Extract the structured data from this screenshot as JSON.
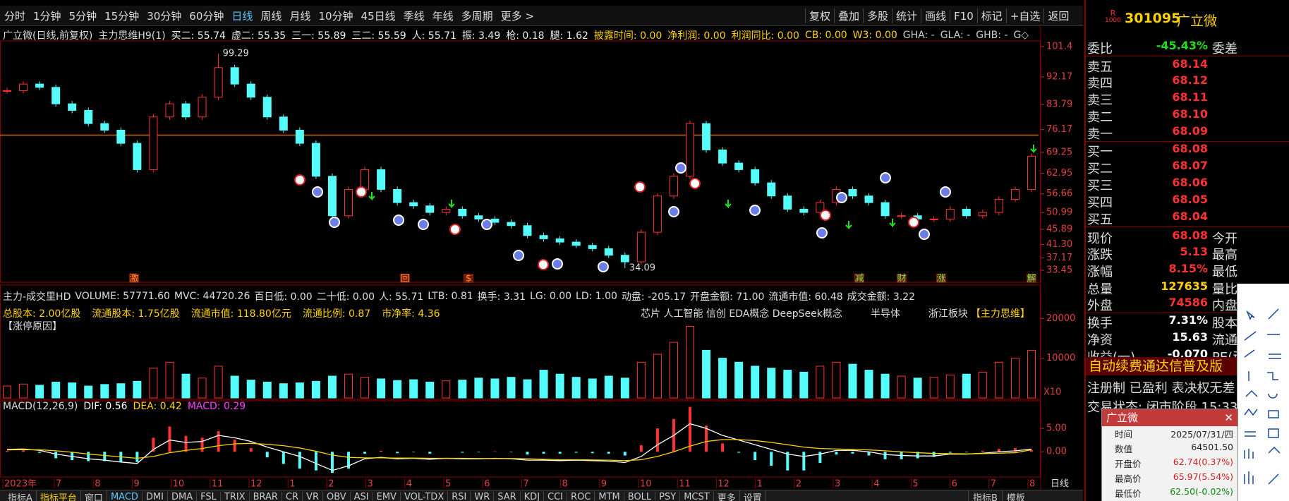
{
  "toolbar": {
    "periods": [
      "分时",
      "1分钟",
      "5分钟",
      "15分钟",
      "30分钟",
      "60分钟",
      "日线",
      "周线",
      "月线",
      "10分钟",
      "45日线",
      "季线",
      "年线",
      "多周期",
      "更多 >"
    ],
    "tools": [
      "复权",
      "叠加",
      "多股",
      "统计",
      "画线",
      "F10",
      "标记",
      "+自选",
      "返回"
    ]
  },
  "main_info": {
    "stock": "广立微(日线,前复权)",
    "indicator": "主力思维H9(1)",
    "white": [
      "买二: 55.74",
      "虚二: 55.35",
      "三一: 55.89",
      "三二: 55.59",
      "人: 55.71",
      "振: 3.49",
      "枪: 0.18",
      "腿: 1.62"
    ],
    "yellow": [
      "披露时间: 0.00",
      "净利润: 0.00",
      "利润同比: 0.00",
      "CB: 0.00",
      "W3: 0.00"
    ],
    "gray": [
      "GHA: -",
      "GLA: -",
      "GHB: -",
      "G◇"
    ]
  },
  "price_chart": {
    "ylim": [
      29.8,
      103.1
    ],
    "yticks": [
      101.4,
      92.17,
      83.79,
      76.17,
      69.25,
      62.95,
      56.66,
      50.99,
      45.89,
      {
        "value": 41.3,
        "label": "41.30"
      },
      37.17,
      33.45
    ],
    "closes": [
      88,
      90,
      89,
      84,
      82,
      78,
      76,
      72,
      64,
      80,
      84,
      80,
      86,
      95,
      90,
      86,
      80,
      76,
      72,
      62,
      50,
      58,
      64,
      58,
      54,
      53,
      51,
      52,
      50,
      49,
      48,
      47,
      44,
      43,
      42,
      41,
      40,
      38,
      36,
      45,
      56,
      62,
      78,
      70,
      66,
      64,
      60,
      56,
      52,
      51,
      54,
      58,
      56,
      54,
      50,
      50,
      49,
      49,
      52,
      50,
      51,
      55,
      58,
      68.08
    ],
    "high": 99.29,
    "low": 34.09,
    "resistance": 74.5,
    "events": [
      "激",
      "回",
      "$",
      "减",
      "财",
      "涨",
      "解"
    ]
  },
  "volume_panel": {
    "info": [
      "主力-成交里HD",
      "VOLUME: 57771.60",
      "MVC: 44720.26",
      "百日低: 0.00",
      "二十低: 0.00",
      "人: 55.71",
      "LTB: 0.81",
      "换手: 3.31",
      "LG: 0.00",
      "LD: 1.00",
      "动盘: -205.17",
      "开盘金额: 71.00",
      "流通市值: 60.48",
      "成交金额: 3.22"
    ],
    "fundamentals": [
      "总股本: 2.00亿股",
      "流通股本: 1.75亿股",
      "流通市值: 118.80亿元",
      "流通比例: 0.87",
      "市净率: 4.36"
    ],
    "concepts": [
      "芯片 人工智能 信创 EDA概念 DeepSeek概念",
      "半导体",
      "浙江板块"
    ],
    "system": "【主力思维】",
    "reason": "【涨停原因】",
    "ylim": [
      0,
      28400
    ],
    "yticks": [
      10000,
      20000
    ],
    "unit": "X10",
    "values": [
      3000,
      3500,
      3200,
      4000,
      3800,
      3000,
      3400,
      3600,
      4200,
      7500,
      9000,
      6000,
      5000,
      8000,
      5500,
      4500,
      4000,
      3600,
      3800,
      4200,
      5500,
      6000,
      5200,
      4800,
      4400,
      4600,
      4000,
      4300,
      4500,
      5000,
      4800,
      5200,
      4600,
      7000,
      6000,
      5200,
      4800,
      5500,
      5000,
      9000,
      11000,
      14000,
      18000,
      12000,
      10000,
      9000,
      8000,
      7500,
      7000,
      6500,
      8000,
      9000,
      8500,
      7000,
      6000,
      5500,
      5000,
      5200,
      5800,
      6000,
      6500,
      9000,
      10000,
      12000
    ]
  },
  "macd_panel": {
    "name": "MACD(12,26,9)",
    "dif_label": "DIF: 0.56",
    "dea_label": "DEA: 0.42",
    "macd_label": "MACD: 0.29",
    "ylim": [
      -5.4,
      10.6
    ],
    "yticks": [
      {
        "value": 0,
        "label": "0.00"
      },
      {
        "value": 5,
        "label": "5.00"
      }
    ],
    "dif": [
      0.5,
      0.6,
      0.3,
      -0.5,
      -1,
      -1.5,
      -1.8,
      -2.2,
      -2.5,
      0.5,
      2.5,
      2,
      2.2,
      3.5,
      3,
      2.2,
      1,
      0,
      -1,
      -2.5,
      -4,
      -3,
      -1.5,
      -1.2,
      -1.5,
      -1.4,
      -1.6,
      -1.4,
      -1.5,
      -1.5,
      -1.4,
      -1.5,
      -1.8,
      -1.8,
      -1.9,
      -1.8,
      -1.9,
      -2,
      -2.3,
      -1,
      1.5,
      3.5,
      6,
      5,
      3.5,
      2.5,
      1.5,
      0.5,
      -0.5,
      -1,
      -0.5,
      0.3,
      0.3,
      0,
      -0.6,
      -0.8,
      -0.9,
      -0.9,
      -0.5,
      -0.5,
      -0.3,
      0,
      0.2,
      0.56
    ],
    "dea": [
      0.4,
      0.45,
      0.42,
      0.2,
      -0.1,
      -0.5,
      -0.8,
      -1.1,
      -1.4,
      -1,
      -0.2,
      0.3,
      0.7,
      1.3,
      1.7,
      1.8,
      1.6,
      1.3,
      0.8,
      0.1,
      -0.7,
      -1.2,
      -1.3,
      -1.3,
      -1.35,
      -1.35,
      -1.4,
      -1.4,
      -1.4,
      -1.45,
      -1.45,
      -1.45,
      -1.5,
      -1.6,
      -1.7,
      -1.7,
      -1.75,
      -1.8,
      -1.9,
      -1.7,
      -1,
      0,
      1.2,
      2.2,
      2.6,
      2.6,
      2.4,
      2,
      1.5,
      1,
      0.7,
      0.6,
      0.5,
      0.4,
      0.2,
      0,
      -0.2,
      -0.35,
      -0.4,
      -0.45,
      -0.4,
      -0.3,
      -0.2,
      0.42
    ],
    "macd": [
      0.2,
      0.3,
      -0.24,
      -1.4,
      -1.8,
      -2,
      -2,
      -2.2,
      -2.2,
      3,
      5.4,
      3.4,
      3,
      4.4,
      2.6,
      0.8,
      -1.2,
      -2.6,
      -3.6,
      -4,
      -4.5,
      -3.6,
      -0.4,
      0.2,
      -0.3,
      -0.1,
      -0.4,
      0,
      -0.2,
      -0.1,
      0.1,
      -0.1,
      -0.6,
      -0.4,
      -0.4,
      -0.2,
      -0.3,
      -0.4,
      -0.8,
      1.4,
      5,
      7,
      9.6,
      5.6,
      1.8,
      -0.2,
      -1.8,
      -3,
      -4,
      -4,
      -2.4,
      -0.6,
      -0.4,
      -0.8,
      -1.6,
      -1.6,
      -1.4,
      -1.1,
      -0.2,
      -0.1,
      0.2,
      0.6,
      0.8,
      0.29
    ]
  },
  "date_axis": {
    "labels": [
      "2023年",
      "7",
      "8",
      "9",
      "10",
      "11",
      "12",
      "1",
      "2",
      "3",
      "4",
      "5",
      "6",
      "7",
      "8",
      "9",
      "10",
      "11",
      "12",
      "1",
      "2",
      "3",
      "4",
      "5",
      "6",
      "7",
      "8"
    ],
    "period": "日线"
  },
  "quote": {
    "code": "301095",
    "name": "广立微",
    "badge": "R",
    "badge_sub": "1000",
    "rows": [
      {
        "label": "委比",
        "value": "-45.43%",
        "right": "委差"
      },
      {
        "label": "卖五",
        "value": "68.14"
      },
      {
        "label": "卖四",
        "value": "68.12"
      },
      {
        "label": "卖三",
        "value": "68.11"
      },
      {
        "label": "卖二",
        "value": "68.10"
      },
      {
        "label": "卖一",
        "value": "68.09"
      },
      {
        "label": "买一",
        "value": "68.08"
      },
      {
        "label": "买二",
        "value": "68.07"
      },
      {
        "label": "买三",
        "value": "68.06"
      },
      {
        "label": "买四",
        "value": "68.05"
      },
      {
        "label": "买五",
        "value": "68.04"
      },
      {
        "label": "现价",
        "value": "68.08",
        "right": "今开"
      },
      {
        "label": "涨跌",
        "value": "5.13",
        "right": "最高"
      },
      {
        "label": "涨幅",
        "value": "8.15%",
        "right": "最低"
      },
      {
        "label": "总量",
        "value": "127635",
        "right": "量比"
      },
      {
        "label": "外盘",
        "value": "74586",
        "right": "内盘"
      },
      {
        "label": "换手",
        "value": "7.31%",
        "right": "股本"
      },
      {
        "label": "净资",
        "value": "15.63",
        "right": "流通"
      },
      {
        "label": "收益(一)",
        "value": "-0.070",
        "right": "PE(动"
      }
    ],
    "promo": "自动续费通达信普及版",
    "tags": "注册制 已盈利 表决权无差",
    "status": "交易状态: 闭市阶段 15:33"
  },
  "popup": {
    "title": "广立微",
    "rows": [
      {
        "label": "时间",
        "value": "2025/07/31/四"
      },
      {
        "label": "数值",
        "value": "64501.50"
      },
      {
        "label": "开盘价",
        "value": "62.74(0.37%)"
      },
      {
        "label": "最高价",
        "value": "65.97(5.54%)"
      },
      {
        "label": "最低价",
        "value": "62.50(-0.02%)"
      }
    ]
  },
  "bottom_tabs": {
    "left": [
      "指标A",
      "指标平台",
      "窗口",
      "MACD",
      "DMI",
      "DMA",
      "FSL",
      "TRIX",
      "BRAR",
      "CR",
      "VR",
      "OBV",
      "ASI",
      "EMV",
      "VOL-TDX",
      "RSI",
      "WR",
      "SAR",
      "KDJ",
      "CCI",
      "ROC",
      "MTM",
      "BOLL",
      "PSY",
      "MCST",
      "更多",
      "设置"
    ],
    "right": [
      "指标B",
      "模板"
    ]
  }
}
